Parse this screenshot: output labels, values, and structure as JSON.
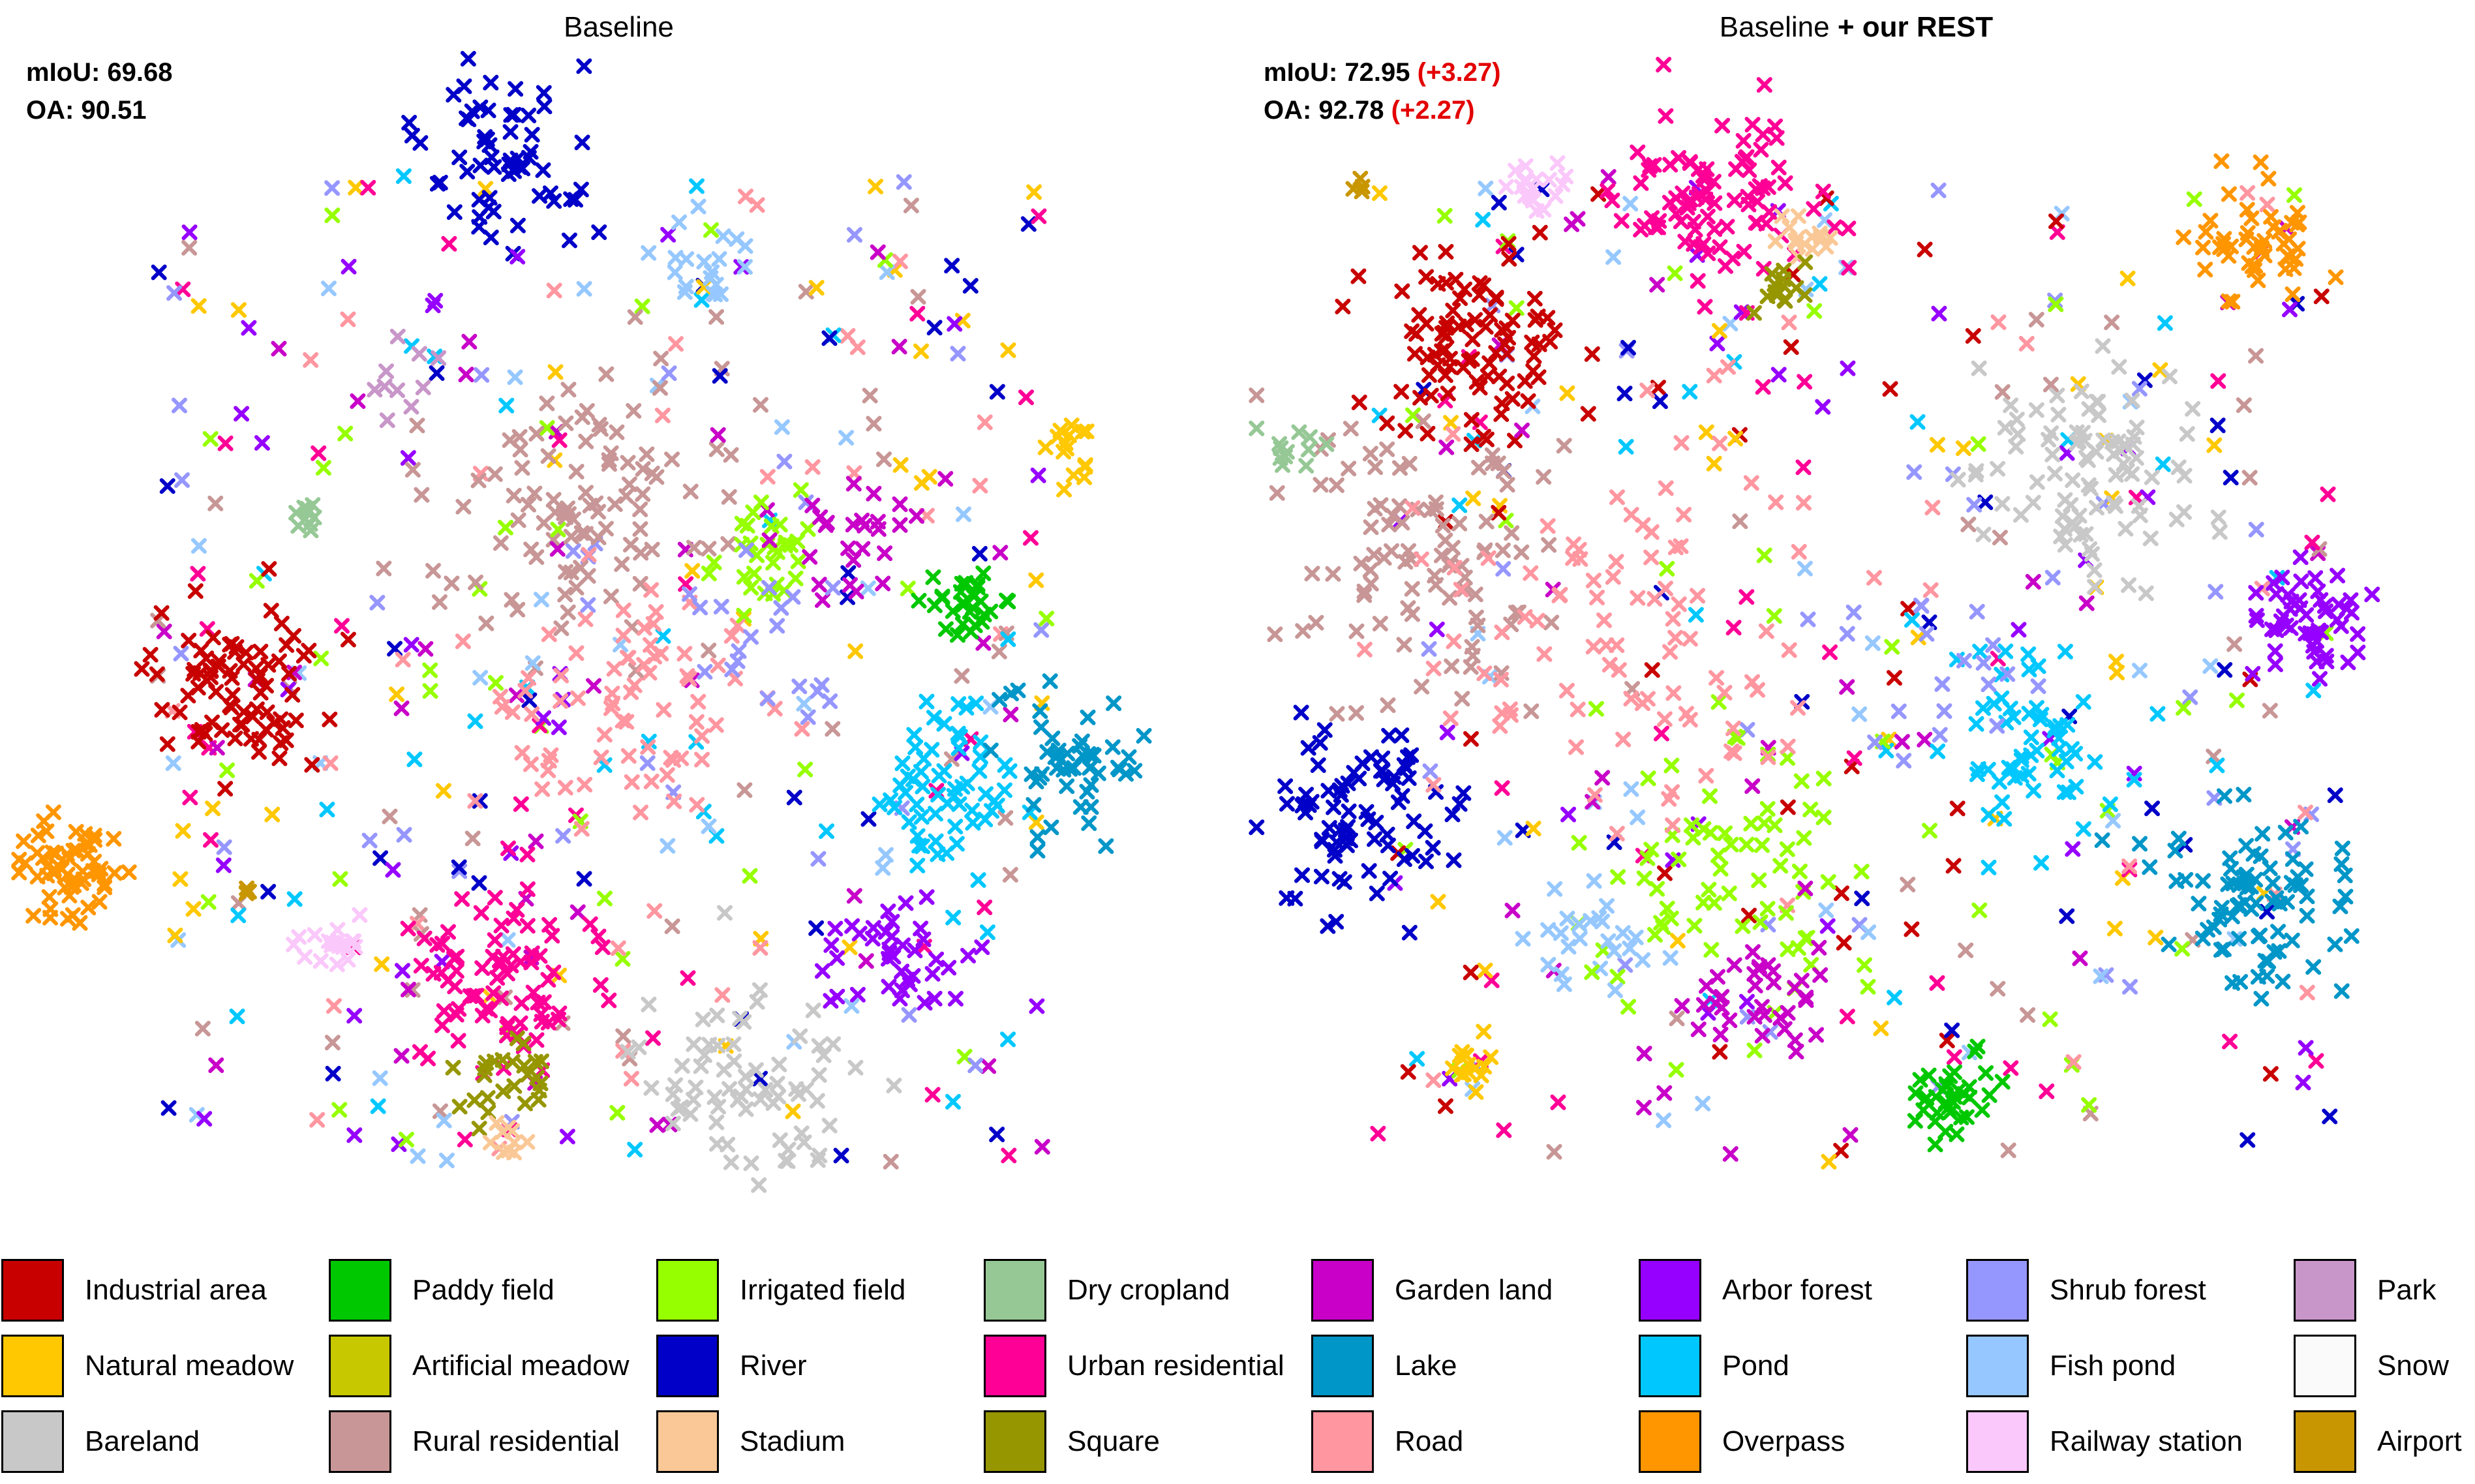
{
  "panels": {
    "left": {
      "title": "Baseline",
      "miou_label": "mIoU: 69.68",
      "oa_label": "OA: 90.51"
    },
    "right": {
      "title_prefix": "Baseline",
      "title_bold": "+ our REST",
      "miou_label": "mIoU: 72.95",
      "miou_delta": "(+3.27)",
      "oa_label": "OA: 92.78",
      "oa_delta": "(+2.27)"
    }
  },
  "colors": {
    "delta": "#e30000"
  },
  "legend": [
    {
      "label": "Industrial area",
      "color": "#c80000"
    },
    {
      "label": "Paddy field",
      "color": "#00c800"
    },
    {
      "label": "Irrigated field",
      "color": "#96ff00"
    },
    {
      "label": "Dry cropland",
      "color": "#96c896"
    },
    {
      "label": "Garden land",
      "color": "#c800c8"
    },
    {
      "label": "Arbor forest",
      "color": "#9600ff"
    },
    {
      "label": "Shrub forest",
      "color": "#9696ff"
    },
    {
      "label": "Park",
      "color": "#c896c8"
    },
    {
      "label": "Natural meadow",
      "color": "#ffc800"
    },
    {
      "label": "Artificial meadow",
      "color": "#c8c800"
    },
    {
      "label": "River",
      "color": "#0000c8"
    },
    {
      "label": "Urban residential",
      "color": "#ff0096"
    },
    {
      "label": "Lake",
      "color": "#0096c8"
    },
    {
      "label": "Pond",
      "color": "#00c8ff"
    },
    {
      "label": "Fish pond",
      "color": "#96c8ff"
    },
    {
      "label": "Snow",
      "color": "#fafafa"
    },
    {
      "label": "Bareland",
      "color": "#c8c8c8"
    },
    {
      "label": "Rural residential",
      "color": "#c89696"
    },
    {
      "label": "Stadium",
      "color": "#fac896"
    },
    {
      "label": "Square",
      "color": "#969600"
    },
    {
      "label": "Road",
      "color": "#ff96a0"
    },
    {
      "label": "Overpass",
      "color": "#ff9600"
    },
    {
      "label": "Railway station",
      "color": "#fac8fa"
    },
    {
      "label": "Airport",
      "color": "#c89600"
    }
  ],
  "chart_data": [
    {
      "type": "scatter",
      "title": "Baseline",
      "xlabel": "",
      "ylabel": "",
      "axes_visible": false,
      "annotations": [
        "mIoU: 69.68",
        "OA: 90.51"
      ],
      "legend_position": "bottom",
      "clusters": [
        {
          "class": "Overpass",
          "x": 0.05,
          "y": 0.7,
          "spread": 0.022,
          "n": 60
        },
        {
          "class": "Industrial area",
          "x": 0.18,
          "y": 0.54,
          "spread": 0.035,
          "n": 80
        },
        {
          "class": "River",
          "x": 0.41,
          "y": 0.08,
          "spread": 0.035,
          "n": 60
        },
        {
          "class": "Urban residential",
          "x": 0.41,
          "y": 0.79,
          "spread": 0.04,
          "n": 80
        },
        {
          "class": "Bareland",
          "x": 0.61,
          "y": 0.89,
          "spread": 0.04,
          "n": 70
        },
        {
          "class": "Arbor forest",
          "x": 0.73,
          "y": 0.77,
          "spread": 0.025,
          "n": 40
        },
        {
          "class": "Pond",
          "x": 0.77,
          "y": 0.62,
          "spread": 0.04,
          "n": 60
        },
        {
          "class": "Lake",
          "x": 0.88,
          "y": 0.61,
          "spread": 0.03,
          "n": 50
        },
        {
          "class": "Rural residential",
          "x": 0.46,
          "y": 0.38,
          "spread": 0.06,
          "n": 90
        },
        {
          "class": "Road",
          "x": 0.52,
          "y": 0.56,
          "spread": 0.06,
          "n": 70
        },
        {
          "class": "Paddy field",
          "x": 0.79,
          "y": 0.47,
          "spread": 0.015,
          "n": 30
        },
        {
          "class": "Railway station",
          "x": 0.27,
          "y": 0.76,
          "spread": 0.012,
          "n": 20
        },
        {
          "class": "Square",
          "x": 0.41,
          "y": 0.88,
          "spread": 0.02,
          "n": 25
        },
        {
          "class": "Irrigated field",
          "x": 0.62,
          "y": 0.42,
          "spread": 0.03,
          "n": 30
        },
        {
          "class": "Natural meadow",
          "x": 0.88,
          "y": 0.34,
          "spread": 0.015,
          "n": 15
        },
        {
          "class": "Garden land",
          "x": 0.7,
          "y": 0.42,
          "spread": 0.03,
          "n": 25
        },
        {
          "class": "Fish pond",
          "x": 0.58,
          "y": 0.17,
          "spread": 0.02,
          "n": 20
        },
        {
          "class": "Shrub forest",
          "x": 0.63,
          "y": 0.5,
          "spread": 0.04,
          "n": 20
        },
        {
          "class": "Stadium",
          "x": 0.41,
          "y": 0.93,
          "spread": 0.01,
          "n": 10
        },
        {
          "class": "Dry cropland",
          "x": 0.24,
          "y": 0.4,
          "spread": 0.01,
          "n": 10
        },
        {
          "class": "Airport",
          "x": 0.2,
          "y": 0.72,
          "spread": 0.004,
          "n": 4
        },
        {
          "class": "Park",
          "x": 0.32,
          "y": 0.28,
          "spread": 0.02,
          "n": 10
        }
      ],
      "scatter": {
        "colors": [
          "Road",
          "Pond",
          "Irrigated field",
          "Garden land",
          "Urban residential",
          "Shrub forest",
          "River",
          "Rural residential",
          "Natural meadow",
          "Fish pond",
          "Arbor forest"
        ],
        "x_range": [
          0.12,
          0.86
        ],
        "y_range": [
          0.1,
          0.95
        ],
        "n": 380
      }
    },
    {
      "type": "scatter",
      "title": "Baseline + our REST",
      "xlabel": "",
      "ylabel": "",
      "axes_visible": false,
      "annotations": [
        "mIoU: 72.95 (+3.27)",
        "OA: 92.78 (+2.27)"
      ],
      "legend_position": "bottom",
      "clusters": [
        {
          "class": "Industrial area",
          "x": 0.18,
          "y": 0.25,
          "spread": 0.04,
          "n": 90
        },
        {
          "class": "Urban residential",
          "x": 0.39,
          "y": 0.12,
          "spread": 0.04,
          "n": 90
        },
        {
          "class": "Overpass",
          "x": 0.84,
          "y": 0.16,
          "spread": 0.025,
          "n": 50
        },
        {
          "class": "Railway station",
          "x": 0.24,
          "y": 0.11,
          "spread": 0.012,
          "n": 20
        },
        {
          "class": "Stadium",
          "x": 0.46,
          "y": 0.15,
          "spread": 0.012,
          "n": 15
        },
        {
          "class": "Square",
          "x": 0.44,
          "y": 0.2,
          "spread": 0.012,
          "n": 15
        },
        {
          "class": "Airport",
          "x": 0.09,
          "y": 0.11,
          "spread": 0.004,
          "n": 4
        },
        {
          "class": "Bareland",
          "x": 0.7,
          "y": 0.36,
          "spread": 0.045,
          "n": 90
        },
        {
          "class": "Rural residential",
          "x": 0.14,
          "y": 0.42,
          "spread": 0.06,
          "n": 90
        },
        {
          "class": "Arbor forest",
          "x": 0.88,
          "y": 0.48,
          "spread": 0.025,
          "n": 50
        },
        {
          "class": "River",
          "x": 0.08,
          "y": 0.65,
          "spread": 0.04,
          "n": 80
        },
        {
          "class": "Lake",
          "x": 0.84,
          "y": 0.73,
          "spread": 0.04,
          "n": 80
        },
        {
          "class": "Pond",
          "x": 0.65,
          "y": 0.59,
          "spread": 0.04,
          "n": 60
        },
        {
          "class": "Irrigated field",
          "x": 0.39,
          "y": 0.7,
          "spread": 0.06,
          "n": 70
        },
        {
          "class": "Paddy field",
          "x": 0.58,
          "y": 0.9,
          "spread": 0.02,
          "n": 35
        },
        {
          "class": "Road",
          "x": 0.3,
          "y": 0.5,
          "spread": 0.07,
          "n": 90
        },
        {
          "class": "Garden land",
          "x": 0.43,
          "y": 0.81,
          "spread": 0.03,
          "n": 35
        },
        {
          "class": "Natural meadow",
          "x": 0.18,
          "y": 0.87,
          "spread": 0.012,
          "n": 15
        },
        {
          "class": "Fish pond",
          "x": 0.27,
          "y": 0.76,
          "spread": 0.03,
          "n": 25
        },
        {
          "class": "Dry cropland",
          "x": 0.03,
          "y": 0.34,
          "spread": 0.015,
          "n": 12
        },
        {
          "class": "Shrub forest",
          "x": 0.55,
          "y": 0.52,
          "spread": 0.05,
          "n": 20
        }
      ],
      "scatter": {
        "colors": [
          "Road",
          "Pond",
          "Irrigated field",
          "Garden land",
          "Urban residential",
          "Shrub forest",
          "River",
          "Rural residential",
          "Natural meadow",
          "Fish pond",
          "Arbor forest",
          "Industrial area"
        ],
        "x_range": [
          0.1,
          0.9
        ],
        "y_range": [
          0.1,
          0.95
        ],
        "n": 360
      }
    }
  ]
}
